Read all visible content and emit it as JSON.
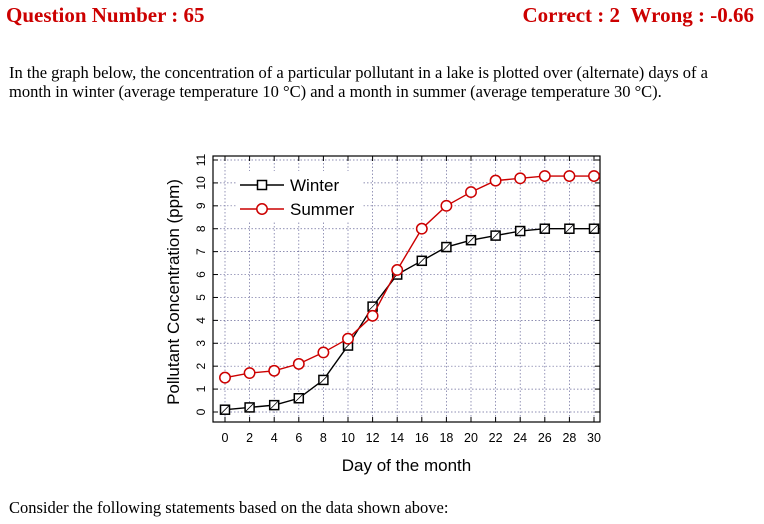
{
  "header": {
    "question_label": "Question Number : 65",
    "correct_label": "Correct : 2",
    "wrong_label": "Wrong : -0.66"
  },
  "question": {
    "intro": "In the graph below, the concentration of a particular pollutant in a lake is plotted over (alternate) days of a month in winter (average temperature 10 °C) and a month in summer (average temperature 30 °C).",
    "consider": "Consider the following statements based on the data shown above:"
  },
  "chart_data": {
    "type": "line",
    "title": "",
    "xlabel": "Day of the month",
    "ylabel": "Pollutant Concentration (ppm)",
    "xlim": [
      0,
      30
    ],
    "ylim": [
      0,
      11
    ],
    "xticks": [
      0,
      2,
      4,
      6,
      8,
      10,
      12,
      14,
      16,
      18,
      20,
      22,
      24,
      26,
      28,
      30
    ],
    "yticks": [
      0,
      1,
      2,
      3,
      4,
      5,
      6,
      7,
      8,
      9,
      10,
      11
    ],
    "grid": true,
    "legend_position": "top-left",
    "series": [
      {
        "name": "Winter",
        "color": "#000000",
        "marker": "square",
        "x": [
          0,
          2,
          4,
          6,
          8,
          10,
          12,
          14,
          16,
          18,
          20,
          22,
          24,
          26,
          28,
          30
        ],
        "y": [
          0.1,
          0.2,
          0.3,
          0.6,
          1.4,
          2.9,
          4.6,
          6.0,
          6.6,
          7.2,
          7.5,
          7.7,
          7.9,
          8.0,
          8.0,
          8.0
        ]
      },
      {
        "name": "Summer",
        "color": "#cc0000",
        "marker": "circle",
        "x": [
          0,
          2,
          4,
          6,
          8,
          10,
          12,
          14,
          16,
          18,
          20,
          22,
          24,
          26,
          28,
          30
        ],
        "y": [
          1.5,
          1.7,
          1.8,
          2.1,
          2.6,
          3.2,
          4.2,
          6.2,
          8.0,
          9.0,
          9.6,
          10.1,
          10.2,
          10.3,
          10.3,
          10.3
        ]
      }
    ]
  }
}
